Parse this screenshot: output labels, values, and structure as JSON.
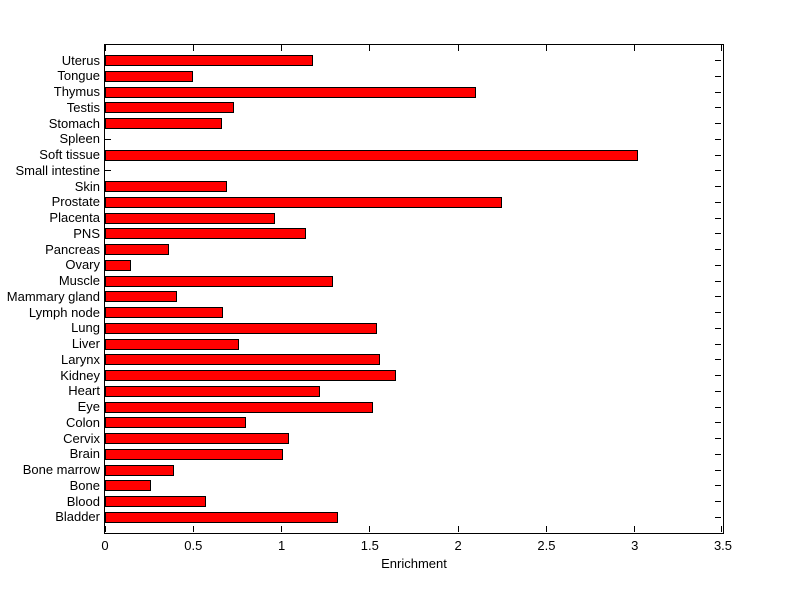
{
  "figure": {
    "background_color": "#FFFFFF",
    "axes_color": "#000000",
    "text_color": "#000000"
  },
  "chart_data": {
    "type": "bar",
    "orientation": "horizontal",
    "title": "",
    "xlabel": "Enrichment",
    "ylabel": "",
    "xlim": [
      0,
      3.5
    ],
    "xticks": [
      0,
      0.5,
      1,
      1.5,
      2,
      2.5,
      3,
      3.5
    ],
    "xtick_labels": [
      "0",
      "0.5",
      "1",
      "1.5",
      "2",
      "2.5",
      "3",
      "3.5"
    ],
    "grid": false,
    "box": true,
    "tick_direction": "in",
    "legend": "none",
    "bar_color": "#FF0000",
    "bar_edge_color": "#000000",
    "categories": [
      "Uterus",
      "Tongue",
      "Thymus",
      "Testis",
      "Stomach",
      "Spleen",
      "Soft tissue",
      "Small intestine",
      "Skin",
      "Prostate",
      "Placenta",
      "PNS",
      "Pancreas",
      "Ovary",
      "Muscle",
      "Mammary gland",
      "Lymph node",
      "Lung",
      "Liver",
      "Larynx",
      "Kidney",
      "Heart",
      "Eye",
      "Colon",
      "Cervix",
      "Brain",
      "Bone marrow",
      "Bone",
      "Blood",
      "Bladder"
    ],
    "values": [
      1.18,
      0.5,
      2.1,
      0.73,
      0.66,
      0,
      3.02,
      0,
      0.69,
      2.25,
      0.96,
      1.14,
      0.36,
      0.15,
      1.29,
      0.41,
      0.67,
      1.54,
      0.76,
      1.56,
      1.65,
      1.22,
      1.52,
      0.8,
      1.04,
      1.01,
      0.39,
      0.26,
      0.57,
      1.32
    ],
    "category_order_note": "listed top to bottom as displayed"
  }
}
